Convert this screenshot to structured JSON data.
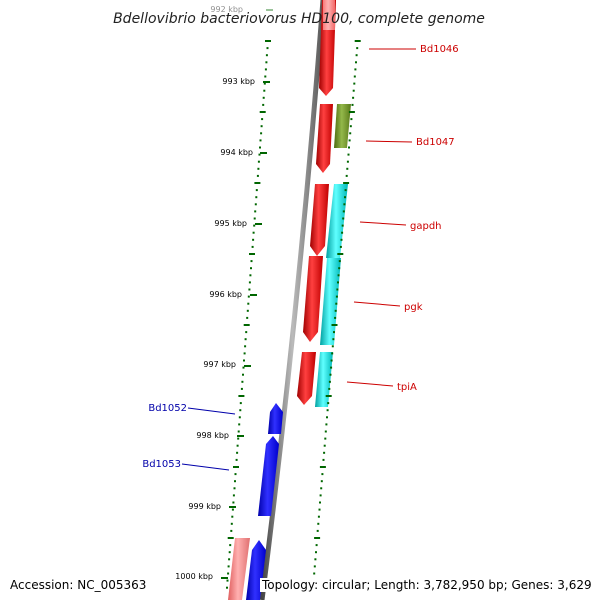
{
  "title": "Bdellovibrio bacteriovorus HD100, complete genome",
  "accession": "Accession: NC_005363",
  "topology": "Topology: circular; Length: 3,782,950 bp; Genes: 3,629",
  "kbp_labels": [
    {
      "text": "992 kbp",
      "faded": true
    },
    {
      "text": "993 kbp"
    },
    {
      "text": "994 kbp"
    },
    {
      "text": "995 kbp"
    },
    {
      "text": "996 kbp"
    },
    {
      "text": "997 kbp"
    },
    {
      "text": "998 kbp"
    },
    {
      "text": "999 kbp"
    },
    {
      "text": "1000 kbp"
    }
  ],
  "gene_labels": [
    {
      "text": "Bd1046",
      "color": "#cc0000"
    },
    {
      "text": "Bd1047",
      "color": "#cc0000"
    },
    {
      "text": "gapdh",
      "color": "#cc0000"
    },
    {
      "text": "pgk",
      "color": "#cc0000"
    },
    {
      "text": "tpiA",
      "color": "#cc0000"
    },
    {
      "text": "Bd1052",
      "color": "#0000aa"
    },
    {
      "text": "Bd1053",
      "color": "#0000aa"
    }
  ],
  "colors": {
    "forward_strand": "#ff0000",
    "reverse_strand": "#0000ee",
    "cyan_track": "#00cccc",
    "olive_track": "#6b8e23",
    "pink_track": "#f08080",
    "backbone": "#777777",
    "ticks": "#006600"
  }
}
